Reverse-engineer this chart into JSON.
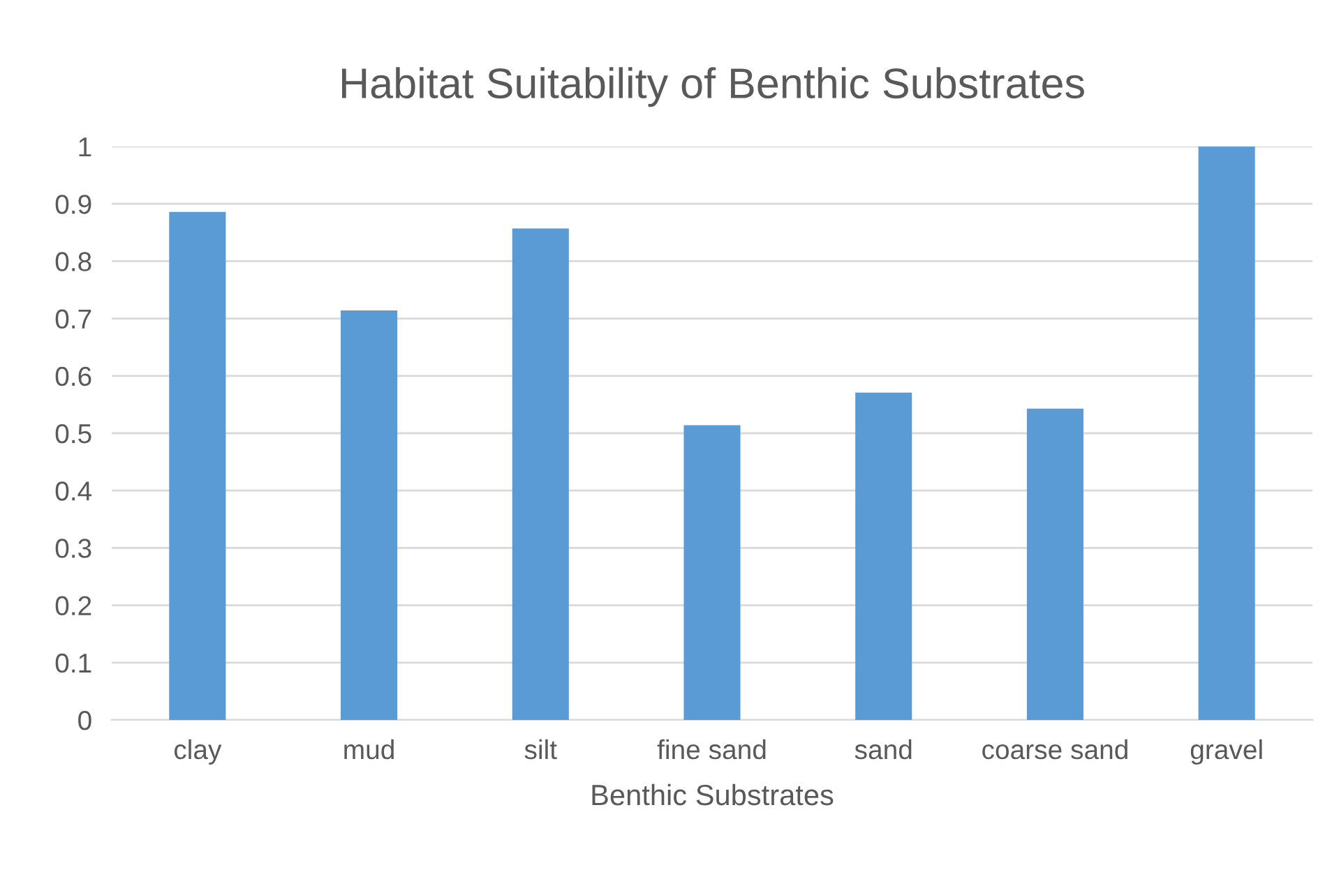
{
  "chart_data": {
    "type": "bar",
    "title": "Habitat Suitability of Benthic Substrates",
    "xlabel": "Benthic Substrates",
    "categories": [
      "clay",
      "mud",
      "silt",
      "fine sand",
      "sand",
      "coarse sand",
      "gravel"
    ],
    "values": [
      0.886,
      0.714,
      0.857,
      0.514,
      0.571,
      0.543,
      1
    ],
    "color": "#5b9bd5",
    "ylim": [
      0,
      1
    ],
    "yticks": [
      0,
      0.1,
      0.2,
      0.3,
      0.4,
      0.5,
      0.6,
      0.7,
      0.8,
      0.9,
      1
    ],
    "grid": "y",
    "legend": false
  }
}
